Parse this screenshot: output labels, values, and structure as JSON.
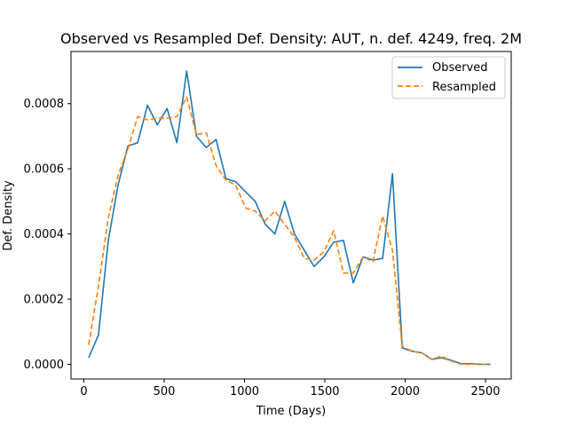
{
  "chart_data": {
    "type": "line",
    "title": "Observed vs Resampled Def. Density: AUT, n. def. 4249, freq. 2M",
    "xlabel": "Time (Days)",
    "ylabel": "Def. Density",
    "xlim": [
      -80,
      2660
    ],
    "ylim": [
      -4.5e-05,
      0.00096
    ],
    "xticks": [
      0,
      500,
      1000,
      1500,
      2000,
      2500
    ],
    "xtick_labels": [
      "0",
      "500",
      "1000",
      "1500",
      "2000",
      "2500"
    ],
    "yticks": [
      0,
      0.0002,
      0.0004,
      0.0006,
      0.0008
    ],
    "ytick_labels": [
      "0.0000",
      "0.0002",
      "0.0004",
      "0.0006",
      "0.0008"
    ],
    "legend_position": "top-right",
    "grid": false,
    "series": [
      {
        "name": "Observed",
        "color": "#1f77b4",
        "style": "solid",
        "x": [
          30,
          91,
          152,
          213,
          274,
          335,
          396,
          457,
          518,
          579,
          640,
          701,
          762,
          823,
          884,
          945,
          1006,
          1067,
          1128,
          1189,
          1250,
          1311,
          1372,
          1433,
          1494,
          1555,
          1616,
          1677,
          1738,
          1799,
          1860,
          1921,
          1982,
          2043,
          2104,
          2165,
          2226,
          2287,
          2348,
          2409,
          2470,
          2531
        ],
        "values": [
          2e-05,
          9e-05,
          0.00038,
          0.00055,
          0.00067,
          0.00068,
          0.000795,
          0.000735,
          0.000785,
          0.00068,
          0.0009,
          0.0007,
          0.000665,
          0.00069,
          0.00057,
          0.00056,
          0.00053,
          0.0005,
          0.00043,
          0.0004,
          0.0005,
          0.0004,
          0.00035,
          0.0003,
          0.00033,
          0.000375,
          0.00038,
          0.00025,
          0.00033,
          0.00032,
          0.000325,
          0.000585,
          5e-05,
          4e-05,
          3.5e-05,
          1.5e-05,
          2e-05,
          1.2e-05,
          2e-06,
          2e-06,
          0.0,
          0.0
        ]
      },
      {
        "name": "Resampled",
        "color": "#ff7f0e",
        "style": "dashed",
        "x": [
          30,
          91,
          152,
          213,
          274,
          335,
          396,
          457,
          518,
          579,
          640,
          701,
          762,
          823,
          884,
          945,
          1006,
          1067,
          1128,
          1189,
          1250,
          1311,
          1372,
          1433,
          1494,
          1555,
          1616,
          1677,
          1738,
          1799,
          1860,
          1921,
          1982,
          2043,
          2104,
          2165,
          2226,
          2287,
          2348,
          2409,
          2470,
          2531
        ],
        "values": [
          6e-05,
          0.00024,
          0.00045,
          0.00058,
          0.00066,
          0.00076,
          0.00075,
          0.000755,
          0.000755,
          0.00076,
          0.00082,
          0.000705,
          0.00071,
          0.00061,
          0.000565,
          0.00055,
          0.00048,
          0.00047,
          0.00044,
          0.00047,
          0.00043,
          0.00039,
          0.000325,
          0.00032,
          0.000345,
          0.00041,
          0.00028,
          0.00028,
          0.00033,
          0.000315,
          0.000455,
          0.00035,
          5.5e-05,
          4e-05,
          3.5e-05,
          1.5e-05,
          2.5e-05,
          1e-05,
          0.0,
          0.0,
          0.0,
          0.0
        ]
      }
    ]
  }
}
